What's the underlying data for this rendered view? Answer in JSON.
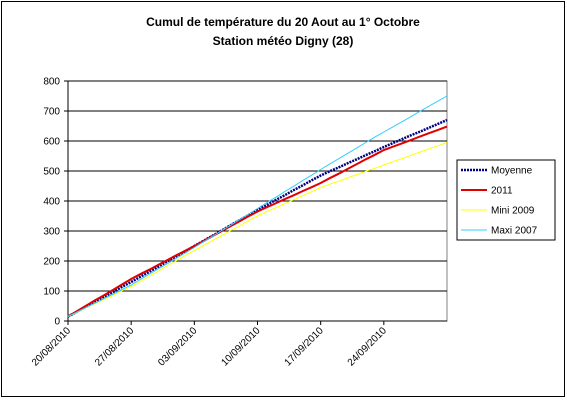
{
  "chart_data": {
    "type": "line",
    "title": "Cumul de température du 20 Aout au 1° Octobre",
    "subtitle": "Station météo Digny (28)",
    "categories": [
      "20/08/2010",
      null,
      null,
      null,
      null,
      null,
      null,
      "27/08/2010",
      null,
      null,
      null,
      null,
      null,
      null,
      "03/09/2010",
      null,
      null,
      null,
      null,
      null,
      null,
      "10/09/2010",
      null,
      null,
      null,
      null,
      null,
      null,
      "17/09/2010",
      null,
      null,
      null,
      null,
      null,
      null,
      "24/09/2010",
      null,
      null,
      null,
      null,
      null,
      null,
      null
    ],
    "series": [
      {
        "name": "Moyenne",
        "color": "#000080",
        "values": [
          15,
          31,
          48,
          64,
          81,
          97,
          114,
          130,
          147,
          164,
          181,
          199,
          216,
          233,
          250,
          267,
          284,
          301,
          319,
          336,
          353,
          370,
          386,
          403,
          419,
          436,
          452,
          469,
          485,
          499,
          512,
          526,
          539,
          553,
          566,
          580,
          593,
          606,
          619,
          631,
          644,
          657,
          670
        ]
      },
      {
        "name": "2011",
        "color": "#e00000",
        "values": [
          15,
          33,
          51,
          69,
          86,
          104,
          122,
          140,
          156,
          171,
          187,
          203,
          219,
          234,
          250,
          266,
          283,
          299,
          316,
          332,
          349,
          365,
          379,
          392,
          406,
          419,
          433,
          446,
          460,
          476,
          491,
          507,
          523,
          539,
          554,
          570,
          581,
          592,
          603,
          615,
          626,
          637,
          648
        ]
      },
      {
        "name": "Mini 2009",
        "color": "#ffff00",
        "values": [
          15,
          29,
          44,
          58,
          72,
          86,
          101,
          115,
          132,
          149,
          166,
          184,
          201,
          218,
          235,
          251,
          268,
          284,
          301,
          317,
          334,
          350,
          364,
          377,
          391,
          404,
          418,
          431,
          445,
          456,
          466,
          477,
          488,
          499,
          509,
          520,
          531,
          541,
          552,
          563,
          574,
          584,
          595
        ]
      },
      {
        "name": "Maxi 2007",
        "color": "#33ccff",
        "values": [
          15,
          30,
          45,
          60,
          75,
          90,
          105,
          120,
          138,
          156,
          174,
          191,
          209,
          227,
          245,
          264,
          282,
          301,
          319,
          338,
          356,
          375,
          394,
          412,
          431,
          449,
          468,
          486,
          505,
          523,
          541,
          559,
          577,
          595,
          613,
          630,
          647,
          664,
          681,
          699,
          716,
          733,
          750
        ]
      }
    ],
    "ylim": [
      0,
      800
    ],
    "yticks": [
      0,
      100,
      200,
      300,
      400,
      500,
      600,
      700,
      800
    ],
    "grid": true,
    "legend": "right"
  }
}
